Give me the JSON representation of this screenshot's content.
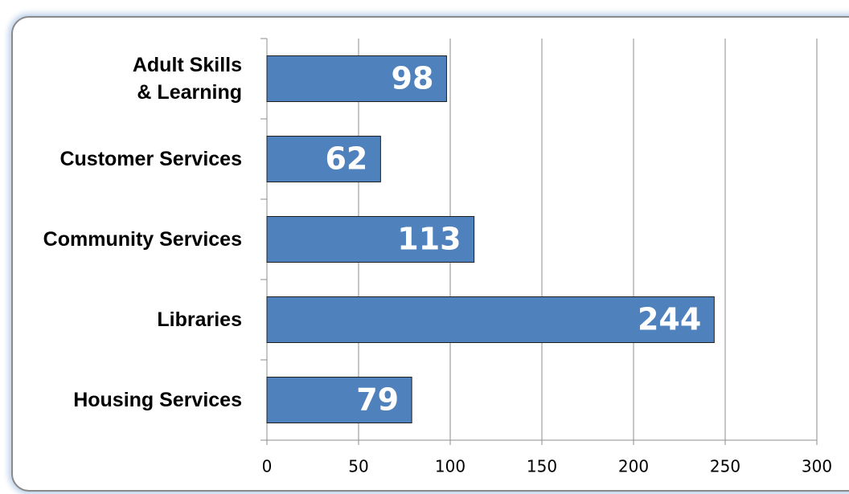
{
  "chart_data": {
    "type": "bar",
    "orientation": "horizontal",
    "categories": [
      "Adult Skills\n& Learning",
      "Customer Services",
      "Community Services",
      "Libraries",
      "Housing Services"
    ],
    "values": [
      98,
      62,
      113,
      244,
      79
    ],
    "color": "#4f81bd",
    "xlim": [
      0,
      300
    ],
    "xticks": [
      0,
      50,
      100,
      150,
      200,
      250,
      300
    ],
    "grid": true
  }
}
